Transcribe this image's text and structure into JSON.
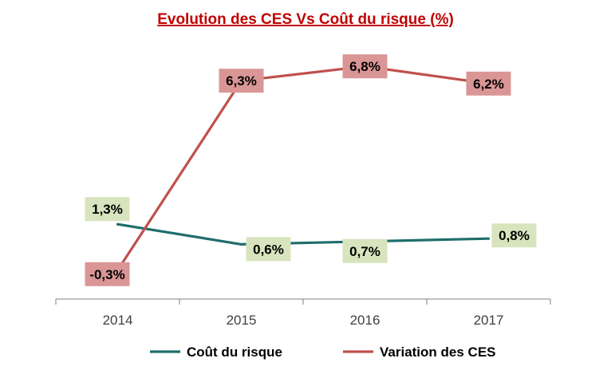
{
  "chart_data": {
    "type": "line",
    "title": "Evolution des CES Vs Coût du risque (%)",
    "categories": [
      "2014",
      "2015",
      "2016",
      "2017"
    ],
    "ylim": [
      -2,
      8
    ],
    "grid": false,
    "legend_position": "bottom",
    "series": [
      {
        "name": "Coût du risque",
        "values": [
          1.3,
          0.6,
          0.7,
          0.8
        ],
        "labels": [
          "1,3%",
          "0,6%",
          "0,7%",
          "0,8%"
        ],
        "color": "#1f6e6a",
        "label_bg": "#d7e4bd"
      },
      {
        "name": "Variation des CES",
        "values": [
          -0.3,
          6.3,
          6.8,
          6.2
        ],
        "labels": [
          "-0,3%",
          "6,3%",
          "6,8%",
          "6,2%"
        ],
        "color": "#c0504d",
        "label_bg": "#d99694"
      }
    ],
    "colors": {
      "title": "#c00000",
      "axis": "#808080"
    }
  }
}
